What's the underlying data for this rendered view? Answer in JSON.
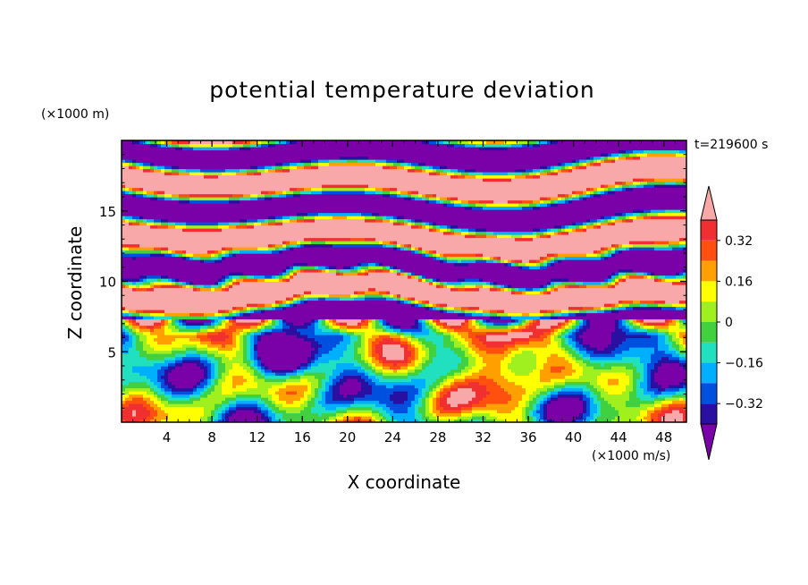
{
  "chart_data": {
    "type": "heatmap",
    "title": "potential temperature deviation",
    "xlabel": "X coordinate",
    "ylabel": "Z coordinate",
    "x_unit": "(×1000 m/s)",
    "y_unit": "(×1000 m)",
    "time_label": "t=219600 s",
    "xlim": [
      0,
      50
    ],
    "ylim": [
      0,
      20
    ],
    "x_ticks": [
      4,
      8,
      12,
      16,
      20,
      24,
      28,
      32,
      36,
      40,
      44,
      48
    ],
    "y_ticks": [
      5,
      10,
      15
    ],
    "colorbar": {
      "levels": [
        -0.4,
        -0.32,
        -0.24,
        -0.16,
        -0.08,
        0,
        0.08,
        0.16,
        0.24,
        0.32,
        0.4
      ],
      "tick_labels": [
        "0.32",
        "0.16",
        "0",
        "−0.16",
        "−0.32"
      ],
      "tick_values": [
        0.32,
        0.16,
        0,
        -0.16,
        -0.32
      ],
      "colors": [
        "#7a00a8",
        "#2a10a0",
        "#0050e0",
        "#00b0ff",
        "#20e0c0",
        "#40d040",
        "#a0f020",
        "#ffff00",
        "#ffa000",
        "#ff5010",
        "#f03030",
        "#f8a8a8"
      ],
      "extend": "both"
    }
  }
}
